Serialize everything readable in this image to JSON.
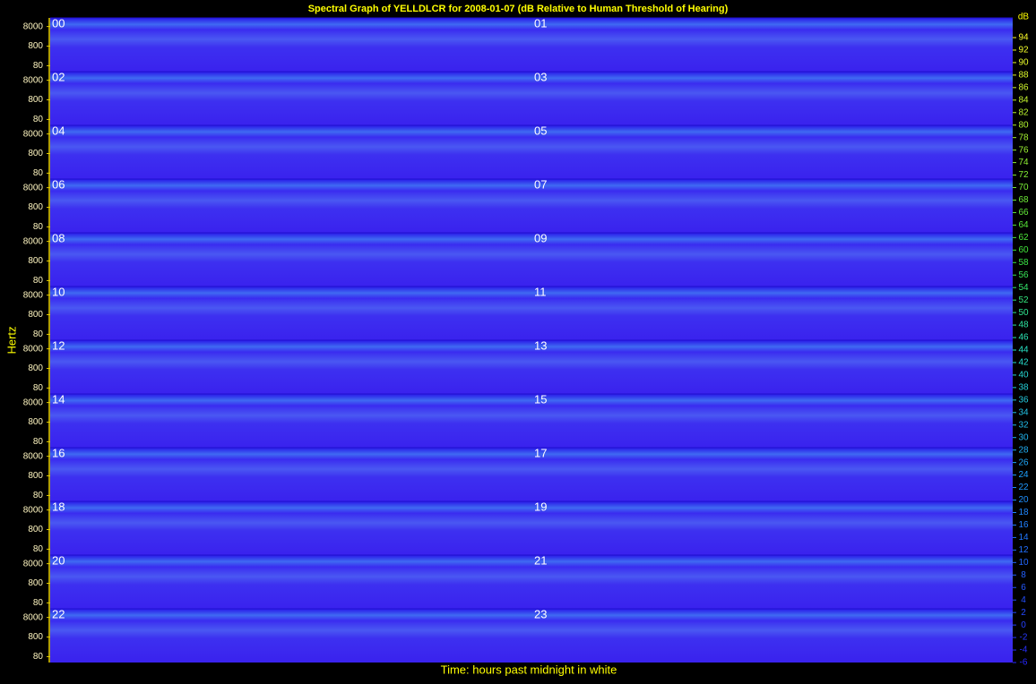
{
  "chart_data": {
    "type": "spectrogram",
    "title": "Spectral Graph of YELLDLCR for 2008-01-07 (dB Relative to Human Threshold of Hearing)",
    "xlabel": "Time: hours past midnight in white",
    "ylabel": "Hertz",
    "hours": [
      "00",
      "01",
      "02",
      "03",
      "04",
      "05",
      "06",
      "07",
      "08",
      "09",
      "10",
      "11",
      "12",
      "13",
      "14",
      "15",
      "16",
      "17",
      "18",
      "19",
      "20",
      "21",
      "22",
      "23"
    ],
    "log_y": true,
    "ylim": [
      40,
      22050
    ],
    "yticks": [
      8000,
      800,
      80
    ],
    "colorbar": {
      "label": "dB",
      "lim": [
        -6,
        94
      ],
      "ticks": [
        94,
        92,
        90,
        88,
        86,
        84,
        82,
        80,
        78,
        76,
        74,
        72,
        70,
        68,
        66,
        64,
        62,
        60,
        58,
        56,
        54,
        52,
        50,
        48,
        46,
        44,
        42,
        40,
        38,
        36,
        34,
        32,
        30,
        28,
        26,
        24,
        22,
        20,
        18,
        16,
        14,
        12,
        10,
        8,
        6,
        4,
        2,
        0,
        -2,
        -4,
        -6
      ]
    }
  }
}
